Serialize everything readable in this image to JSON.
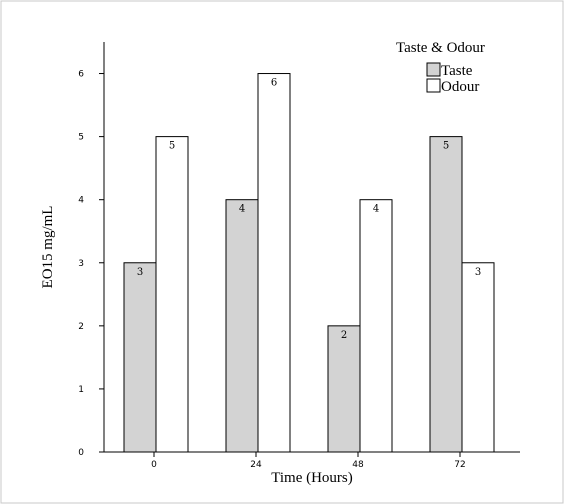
{
  "chart_data": {
    "type": "bar",
    "categories": [
      "0",
      "24",
      "48",
      "72"
    ],
    "series": [
      {
        "name": "Taste",
        "values": [
          3,
          4,
          2,
          5
        ],
        "color": "#d3d3d3"
      },
      {
        "name": "Odour",
        "values": [
          5,
          6,
          4,
          3
        ],
        "color": "#ffffff"
      }
    ],
    "title": "",
    "legend_title": "Taste & Odour",
    "legend_position": "top-right",
    "xlabel": "Time (Hours)",
    "ylabel": "EO15 mg/mL",
    "ylim": [
      0,
      6.5
    ],
    "yticks": [
      "0",
      "1",
      "2",
      "3",
      "4",
      "5",
      "6"
    ],
    "grid": false,
    "data_labels": true,
    "border_color": "#c8c8c8"
  }
}
